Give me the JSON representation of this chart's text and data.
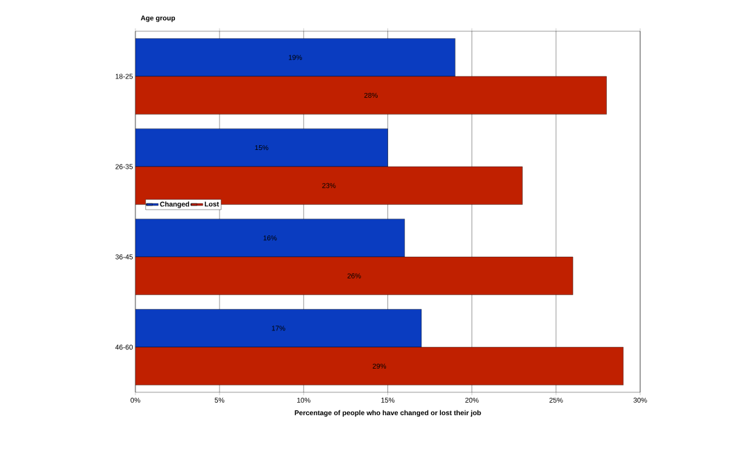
{
  "chart_data": {
    "type": "bar",
    "orientation": "horizontal",
    "xlabel": "Percentage of people who have changed or lost their job",
    "ylabel": "Age group",
    "categories": [
      "18-25",
      "26-35",
      "36-45",
      "46-60"
    ],
    "series": [
      {
        "name": "Changed",
        "color": "#0a3cc0",
        "values": [
          19,
          15,
          16,
          17
        ],
        "value_labels": [
          "19%",
          "15%",
          "16%",
          "17%"
        ]
      },
      {
        "name": "Lost",
        "color": "#c02000",
        "values": [
          28,
          23,
          26,
          29
        ],
        "value_labels": [
          "28%",
          "23%",
          "26%",
          "29%"
        ]
      }
    ],
    "xlim": [
      0,
      30
    ],
    "xticks": [
      {
        "value": 0,
        "label": "0%"
      },
      {
        "value": 5,
        "label": "5%"
      },
      {
        "value": 10,
        "label": "10%"
      },
      {
        "value": 15,
        "label": "15%"
      },
      {
        "value": 20,
        "label": "20%"
      },
      {
        "value": 25,
        "label": "25%"
      },
      {
        "value": 30,
        "label": "30%"
      }
    ],
    "grid": "x",
    "legend": "left"
  }
}
